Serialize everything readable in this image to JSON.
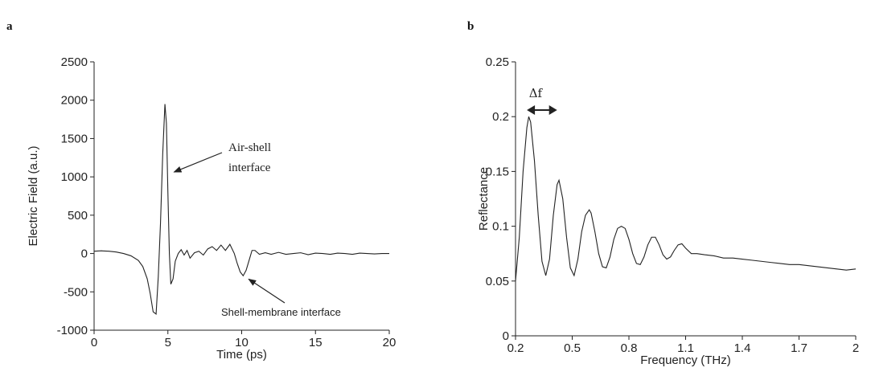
{
  "panels": {
    "a": {
      "letter": "a"
    },
    "b": {
      "letter": "b"
    }
  },
  "chart_data": [
    {
      "type": "line",
      "panel": "a",
      "xlabel": "Time (ps)",
      "ylabel": "Electric Field (a.u.)",
      "xlim": [
        0,
        20
      ],
      "ylim": [
        -1000,
        2500
      ],
      "xticks": [
        0,
        5,
        10,
        15,
        20
      ],
      "yticks": [
        -1000,
        -500,
        0,
        500,
        1000,
        1500,
        2000,
        2500
      ],
      "grid": false,
      "series": [
        {
          "x": [
            0,
            0.5,
            1,
            1.5,
            2,
            2.5,
            3,
            3.3,
            3.6,
            3.8,
            4.0,
            4.2,
            4.35,
            4.5,
            4.65,
            4.8,
            4.9,
            5.0,
            5.1,
            5.2,
            5.35,
            5.5,
            5.7,
            5.9,
            6.1,
            6.3,
            6.5,
            6.8,
            7.1,
            7.4,
            7.7,
            8.0,
            8.3,
            8.6,
            8.9,
            9.2,
            9.5,
            9.7,
            9.9,
            10.1,
            10.3,
            10.5,
            10.7,
            10.9,
            11.2,
            11.6,
            12,
            12.5,
            13,
            13.5,
            14,
            14.5,
            15,
            15.5,
            16,
            16.5,
            17,
            17.5,
            18,
            18.5,
            19,
            19.5,
            20
          ],
          "values": [
            30,
            35,
            30,
            20,
            0,
            -30,
            -90,
            -170,
            -330,
            -520,
            -760,
            -790,
            -300,
            400,
            1300,
            1950,
            1700,
            800,
            0,
            -400,
            -330,
            -100,
            0,
            50,
            -20,
            40,
            -60,
            10,
            30,
            -20,
            60,
            90,
            40,
            110,
            40,
            120,
            0,
            -130,
            -240,
            -290,
            -220,
            -90,
            40,
            40,
            -10,
            10,
            -10,
            15,
            -10,
            0,
            10,
            -15,
            5,
            0,
            -10,
            5,
            0,
            -10,
            5,
            0,
            -5,
            0,
            0
          ]
        }
      ],
      "annotations": [
        {
          "text_lines": [
            "Air-shell",
            "interface"
          ],
          "point_x": 5.2,
          "point_y": 1000
        },
        {
          "text": "Shell-membrane interface",
          "point_x": 10.2,
          "point_y": -250
        }
      ]
    },
    {
      "type": "line",
      "panel": "b",
      "xlabel": "Frequency (THz)",
      "ylabel": "Reflectance",
      "xlim": [
        0.2,
        2
      ],
      "ylim": [
        0,
        0.25
      ],
      "xticks": [
        0.2,
        0.5,
        0.8,
        1.1,
        1.4,
        1.7,
        2
      ],
      "xtick_labels": [
        "0.2",
        "0.5",
        "0.8",
        "1.1",
        "1.4",
        "1.7",
        "2"
      ],
      "yticks": [
        0,
        0.05,
        0.1,
        0.15,
        0.2,
        0.25
      ],
      "ytick_labels": [
        "0",
        "0.05",
        "0.1",
        "0.15",
        "0.2",
        "0.25"
      ],
      "grid": false,
      "series": [
        {
          "x": [
            0.2,
            0.22,
            0.24,
            0.26,
            0.27,
            0.28,
            0.3,
            0.32,
            0.34,
            0.36,
            0.38,
            0.4,
            0.42,
            0.43,
            0.45,
            0.47,
            0.49,
            0.51,
            0.53,
            0.55,
            0.57,
            0.59,
            0.6,
            0.62,
            0.64,
            0.66,
            0.68,
            0.7,
            0.72,
            0.74,
            0.76,
            0.78,
            0.8,
            0.82,
            0.84,
            0.86,
            0.88,
            0.9,
            0.92,
            0.94,
            0.96,
            0.98,
            1.0,
            1.02,
            1.04,
            1.06,
            1.08,
            1.1,
            1.13,
            1.16,
            1.2,
            1.25,
            1.3,
            1.35,
            1.4,
            1.45,
            1.5,
            1.55,
            1.6,
            1.65,
            1.7,
            1.75,
            1.8,
            1.85,
            1.9,
            1.95,
            2.0
          ],
          "values": [
            0.05,
            0.09,
            0.15,
            0.19,
            0.2,
            0.195,
            0.16,
            0.11,
            0.068,
            0.055,
            0.07,
            0.11,
            0.138,
            0.142,
            0.125,
            0.09,
            0.062,
            0.055,
            0.07,
            0.095,
            0.11,
            0.115,
            0.112,
            0.095,
            0.075,
            0.063,
            0.062,
            0.072,
            0.088,
            0.098,
            0.1,
            0.098,
            0.088,
            0.075,
            0.066,
            0.065,
            0.072,
            0.083,
            0.09,
            0.09,
            0.083,
            0.074,
            0.07,
            0.072,
            0.078,
            0.083,
            0.084,
            0.08,
            0.075,
            0.075,
            0.074,
            0.073,
            0.071,
            0.071,
            0.07,
            0.069,
            0.068,
            0.067,
            0.066,
            0.065,
            0.065,
            0.064,
            0.063,
            0.062,
            0.061,
            0.06,
            0.061
          ]
        }
      ],
      "annotations": [
        {
          "text": "Δf",
          "x_from": 0.26,
          "x_to": 0.42,
          "y": 0.2
        }
      ]
    }
  ]
}
